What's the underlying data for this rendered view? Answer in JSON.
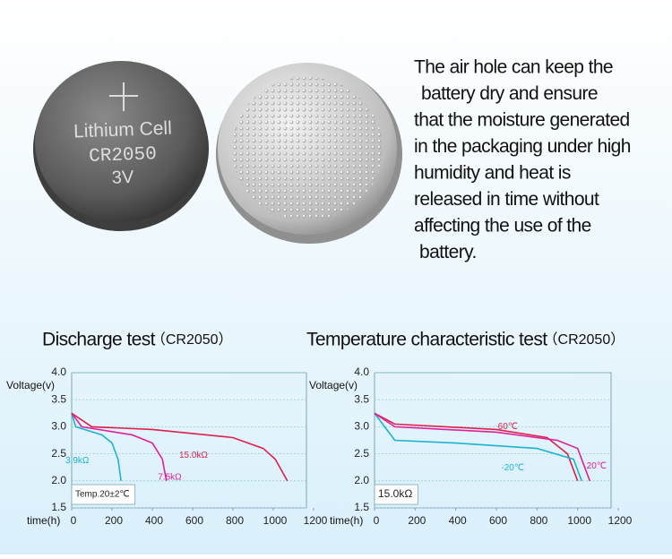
{
  "coin": {
    "brand": "Lithium Cell",
    "model": "CR2050",
    "voltage": "3V"
  },
  "description": [
    "The air hole can keep the",
    "battery dry and ensure",
    "that the moisture generated",
    "in the packaging under high",
    "humidity and heat is",
    "released in time without",
    "affecting the use of the",
    "battery."
  ],
  "chart_data": [
    {
      "type": "line",
      "title": "Discharge test",
      "subtitle": "（CR2050）",
      "y_label": "Voltage(v)",
      "x_label": "time(h)",
      "annotation": "Temp.20±2℃",
      "xlim": [
        0,
        1200
      ],
      "xticks": [
        0,
        200,
        400,
        600,
        800,
        1000,
        1200
      ],
      "ylim": [
        1.5,
        4
      ],
      "yticks": [
        1.5,
        {
          "value": 2,
          "label": "2.0"
        },
        2.5,
        {
          "value": 3,
          "label": "3.0"
        },
        3.5,
        {
          "value": 4,
          "label": "4.0"
        }
      ],
      "grid": true,
      "series": [
        {
          "name": "3.9kΩ",
          "color": "#1cb3d2",
          "x": [
            0,
            20,
            150,
            200,
            230,
            245
          ],
          "values": [
            3.25,
            3.0,
            2.85,
            2.7,
            2.4,
            2.0
          ]
        },
        {
          "name": "7.5kΩ",
          "color": "#e0209a",
          "x": [
            0,
            50,
            300,
            400,
            450,
            470
          ],
          "values": [
            3.25,
            3.0,
            2.85,
            2.7,
            2.4,
            2.0
          ]
        },
        {
          "name": "15.0kΩ",
          "color": "#e0204a",
          "x": [
            0,
            100,
            400,
            800,
            950,
            1010,
            1070
          ],
          "values": [
            3.25,
            3.0,
            2.95,
            2.8,
            2.6,
            2.4,
            2.0
          ]
        }
      ]
    },
    {
      "type": "line",
      "title": "Temperature characteristic test",
      "subtitle": "（CR2050）",
      "y_label": "Voltage(v)",
      "x_label": "time(h)",
      "annotation": "15.0kΩ",
      "xlim": [
        0,
        1200
      ],
      "xticks": [
        0,
        200,
        400,
        600,
        800,
        1000,
        1200
      ],
      "ylim": [
        1.5,
        4
      ],
      "yticks": [
        1.5,
        {
          "value": 2,
          "label": "2.0"
        },
        2.5,
        {
          "value": 3,
          "label": "3.0"
        },
        3.5,
        {
          "value": 4,
          "label": "4.0"
        }
      ],
      "grid": true,
      "series": [
        {
          "name": "60℃",
          "color": "#e0204a",
          "x": [
            0,
            100,
            600,
            850,
            950,
            1000
          ],
          "values": [
            3.25,
            3.05,
            2.95,
            2.8,
            2.5,
            2.0
          ]
        },
        {
          "name": "-20℃",
          "color": "#1cb3d2",
          "x": [
            0,
            50,
            100,
            400,
            800,
            980,
            1020
          ],
          "values": [
            3.25,
            3.0,
            2.75,
            2.7,
            2.6,
            2.4,
            2.0
          ]
        },
        {
          "name": "20℃",
          "color": "#e0209a",
          "x": [
            0,
            100,
            600,
            900,
            1000,
            1060
          ],
          "values": [
            3.25,
            3.0,
            2.9,
            2.75,
            2.6,
            2.0
          ]
        }
      ]
    }
  ]
}
